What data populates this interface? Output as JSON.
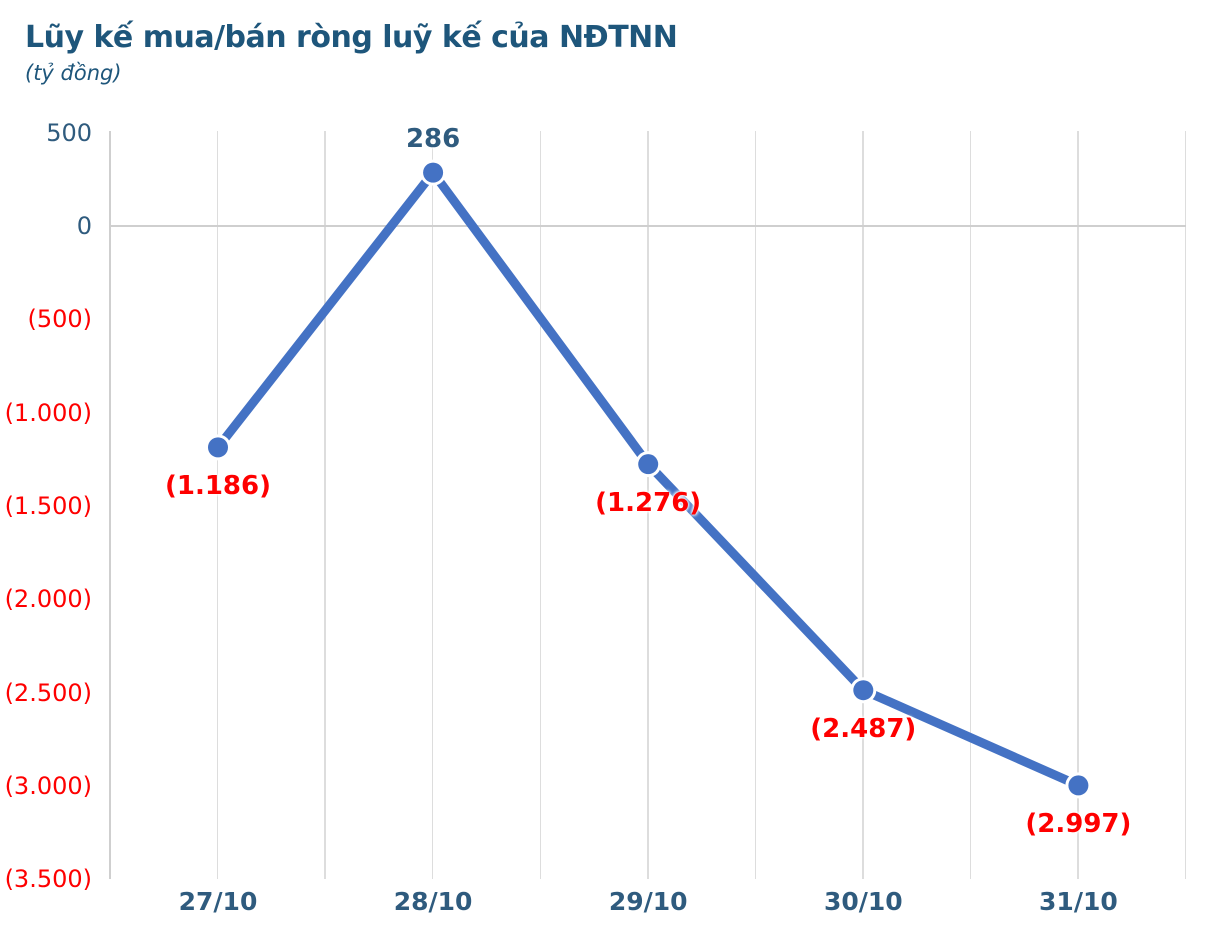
{
  "header": {
    "title": "Lũy kế mua/bán ròng luỹ kế của NĐTNN",
    "subtitle": "(tỷ đồng)"
  },
  "chart_data": {
    "type": "line",
    "title": "Lũy kế mua/bán ròng luỹ kế của NĐTNN",
    "unit_note": "(tỷ đồng)",
    "categories": [
      "27/10",
      "28/10",
      "29/10",
      "30/10",
      "31/10"
    ],
    "values": [
      -1186,
      286,
      -1276,
      -2487,
      -2997
    ],
    "data_labels": [
      "(1.186)",
      "286",
      "(1.276)",
      "(2.487)",
      "(2.997)"
    ],
    "xlabel": "",
    "ylabel": "tỷ đồng",
    "ylim": [
      -3500,
      500
    ],
    "y_axis": {
      "ticks": [
        {
          "label": "500",
          "value": 500
        },
        {
          "label": "0",
          "value": 0
        },
        {
          "label": "(500)",
          "value": -500
        },
        {
          "label": "(1.000)",
          "value": -1000
        },
        {
          "label": "(1.500)",
          "value": -1500
        },
        {
          "label": "(2.000)",
          "value": -2000
        },
        {
          "label": "(2.500)",
          "value": -2500
        },
        {
          "label": "(3.000)",
          "value": -3000
        },
        {
          "label": "(3.500)",
          "value": -3500
        }
      ]
    },
    "grid": "vertical-only",
    "legend": "none",
    "marker": "circle",
    "colors": {
      "line": "#4472C4",
      "marker": "#4472C4",
      "marker_ring": "#ffffff",
      "title_text": "#1E567B",
      "axis_text": "#2F5B7E",
      "positive_label": "#2F5B7E",
      "negative_text": "#FE0000",
      "gridline": "#dddddd",
      "axis_line": "#cfcfcf"
    }
  }
}
